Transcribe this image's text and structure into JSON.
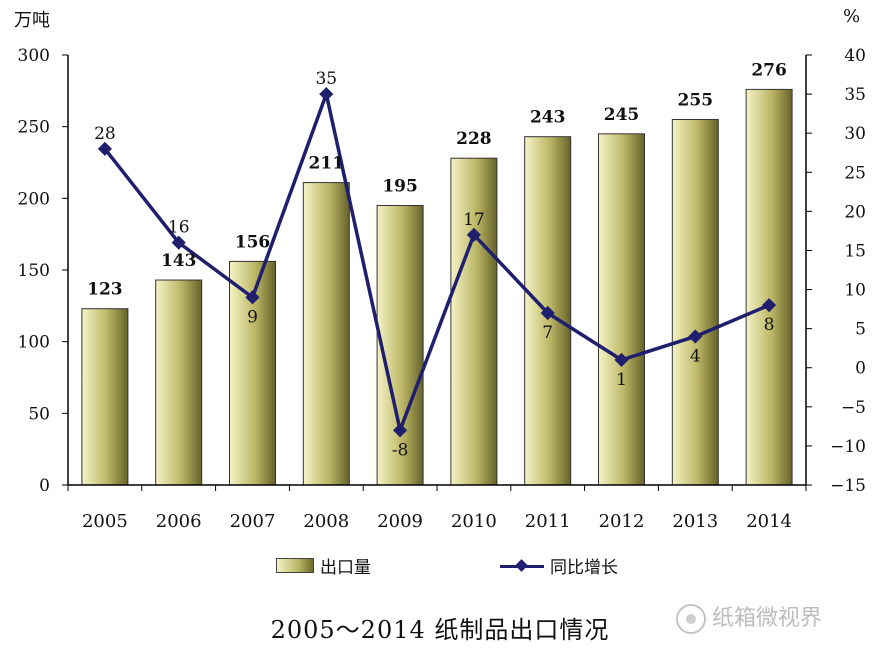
{
  "unit_left": "万吨",
  "unit_right": "%",
  "title": "2005～2014 纸制品出口情况",
  "watermark": "纸箱微视界",
  "chart_data": {
    "type": "bar",
    "categories": [
      "2005",
      "2006",
      "2007",
      "2008",
      "2009",
      "2010",
      "2011",
      "2012",
      "2013",
      "2014"
    ],
    "series": [
      {
        "name": "出口量",
        "type": "bar",
        "axis": "left",
        "values": [
          123,
          143,
          156,
          211,
          195,
          228,
          243,
          245,
          255,
          276
        ]
      },
      {
        "name": "同比增长",
        "type": "line",
        "axis": "right",
        "values": [
          28,
          16,
          9,
          35,
          -8,
          17,
          7,
          1,
          4,
          8
        ]
      }
    ],
    "ylim_left": [
      0,
      300
    ],
    "yticks_left": [
      0,
      50,
      100,
      150,
      200,
      250,
      300
    ],
    "ylim_right": [
      -15,
      40
    ],
    "yticks_right": [
      -15,
      -10,
      -5,
      0,
      5,
      10,
      15,
      20,
      25,
      30,
      35,
      40
    ],
    "line_label_position": [
      "above",
      "above",
      "below",
      "above",
      "below",
      "above",
      "below",
      "below",
      "below",
      "below"
    ],
    "colors": {
      "bar_light": "#f5f3c6",
      "bar_mid": "#bcb766",
      "bar_dark": "#66622a",
      "line": "#1f1f6e"
    },
    "legend": "bottom",
    "grid": false
  }
}
